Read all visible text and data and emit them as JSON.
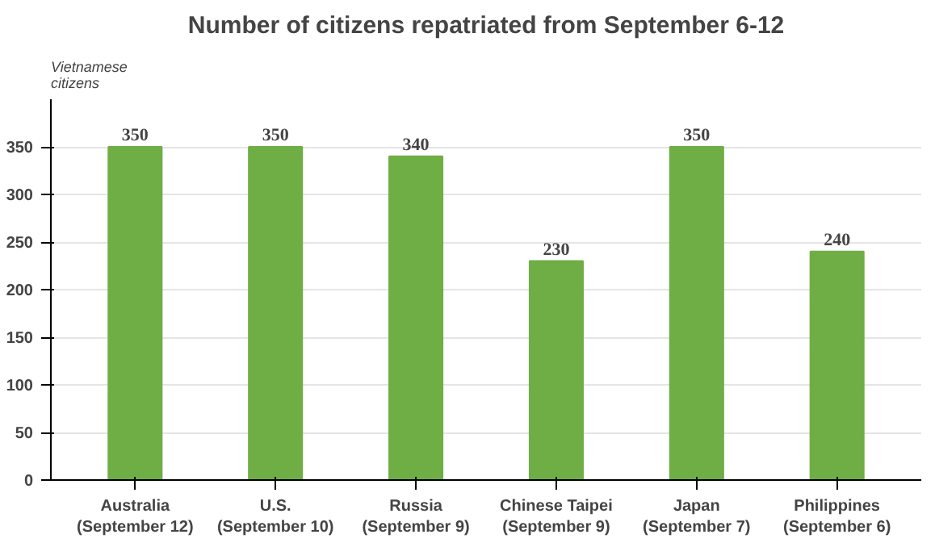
{
  "chart_data": {
    "type": "bar",
    "title": "Number of citizens repatriated from September 6-12",
    "ylabel": "Vietnamese\ncitizens",
    "categories": [
      "Australia\n(September 12)",
      "U.S.\n(September 10)",
      "Russia\n(September 9)",
      "Chinese Taipei\n(September 9)",
      "Japan\n(September 7)",
      "Philippines\n(September 6)"
    ],
    "values": [
      350,
      350,
      340,
      230,
      350,
      240
    ],
    "color": "#6fae45",
    "ylim": [
      0,
      400
    ],
    "yticks": [
      0,
      50,
      100,
      150,
      200,
      250,
      300,
      350
    ],
    "grid": "y",
    "data_labels": true
  }
}
